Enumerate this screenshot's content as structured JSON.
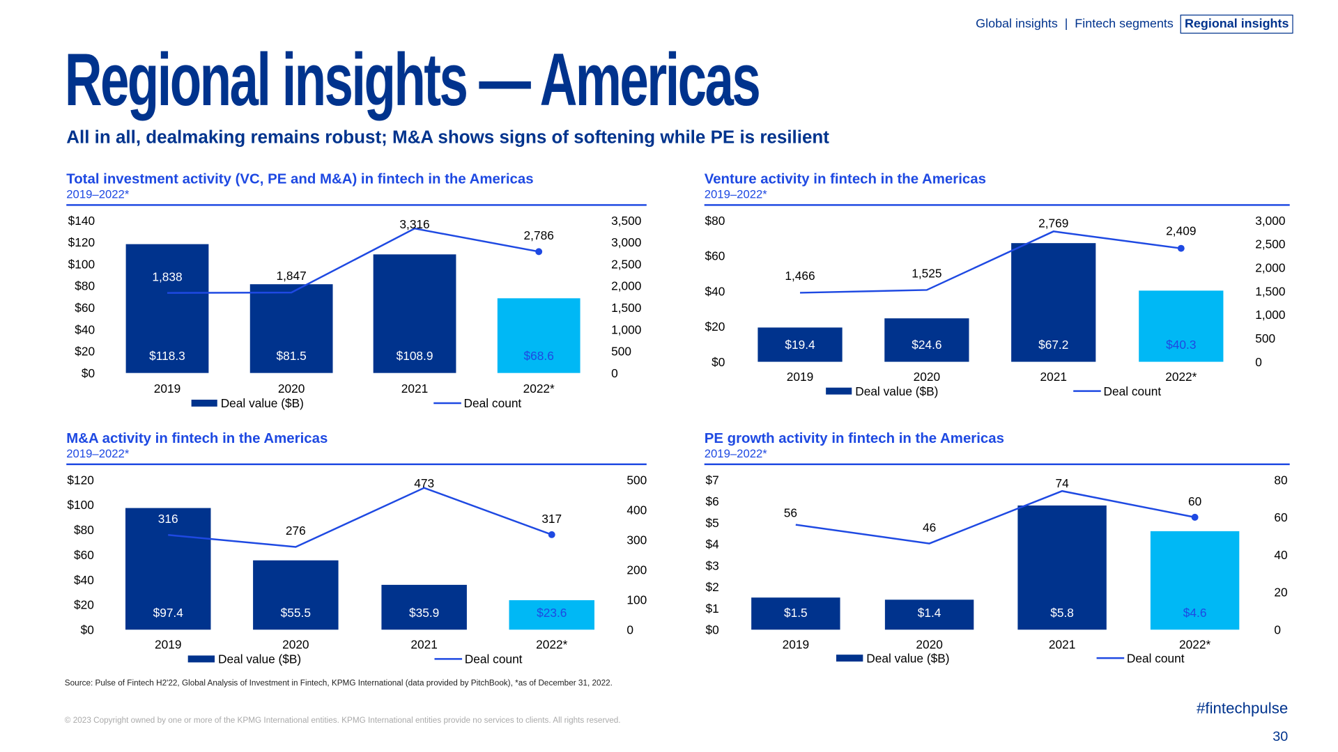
{
  "nav": {
    "items": [
      "Global insights",
      "Fintech segments",
      "Regional insights"
    ],
    "separator": "|",
    "active": "Regional insights"
  },
  "title": "Regional insights — Americas",
  "subtitle": "All in all, dealmaking remains robust; M&A shows signs of softening while PE is resilient",
  "colors": {
    "bar": "#00338D",
    "bar_highlight": "#00B8F5",
    "line": "#1E49E2",
    "title": "#1E49E2"
  },
  "chart_data": [
    {
      "type": "bar+line",
      "title": "Total investment activity (VC, PE and M&A) in fintech in the Americas",
      "subtitle": "2019–2022*",
      "categories": [
        "2019",
        "2020",
        "2021",
        "2022*"
      ],
      "series": [
        {
          "name": "Deal value ($B)",
          "type": "bar",
          "axis": "left",
          "values": [
            118.3,
            81.5,
            108.9,
            68.6
          ],
          "labels": [
            "$118.3",
            "$81.5",
            "$108.9",
            "$68.6"
          ]
        },
        {
          "name": "Deal count",
          "type": "line",
          "axis": "right",
          "values": [
            1838,
            1847,
            3316,
            2786
          ],
          "labels": [
            "1,838",
            "1,847",
            "3,316",
            "2,786"
          ]
        }
      ],
      "ylim": [
        0,
        140
      ],
      "y2lim": [
        0,
        3500
      ],
      "yticks": [
        "$0",
        "$20",
        "$40",
        "$60",
        "$80",
        "$100",
        "$120",
        "$140"
      ],
      "y2ticks": [
        "0",
        "500",
        "1,000",
        "1,500",
        "2,000",
        "2,500",
        "3,000",
        "3,500"
      ],
      "legend": "bottom",
      "grid": false
    },
    {
      "type": "bar+line",
      "title": "Venture activity in fintech in the Americas",
      "subtitle": "2019–2022*",
      "categories": [
        "2019",
        "2020",
        "2021",
        "2022*"
      ],
      "series": [
        {
          "name": "Deal value ($B)",
          "type": "bar",
          "axis": "left",
          "values": [
            19.4,
            24.6,
            67.2,
            40.3
          ],
          "labels": [
            "$19.4",
            "$24.6",
            "$67.2",
            "$40.3"
          ]
        },
        {
          "name": "Deal count",
          "type": "line",
          "axis": "right",
          "values": [
            1466,
            1525,
            2769,
            2409
          ],
          "labels": [
            "1,466",
            "1,525",
            "2,769",
            "2,409"
          ]
        }
      ],
      "ylim": [
        0,
        80
      ],
      "y2lim": [
        0,
        3000
      ],
      "yticks": [
        "$0",
        "$20",
        "$40",
        "$60",
        "$80"
      ],
      "y2ticks": [
        "0",
        "500",
        "1,000",
        "1,500",
        "2,000",
        "2,500",
        "3,000"
      ],
      "legend": "bottom",
      "grid": false
    },
    {
      "type": "bar+line",
      "title": "M&A activity in fintech in the Americas",
      "subtitle": "2019–2022*",
      "categories": [
        "2019",
        "2020",
        "2021",
        "2022*"
      ],
      "series": [
        {
          "name": "Deal value ($B)",
          "type": "bar",
          "axis": "left",
          "values": [
            97.4,
            55.5,
            35.9,
            23.6
          ],
          "labels": [
            "$97.4",
            "$55.5",
            "$35.9",
            "$23.6"
          ]
        },
        {
          "name": "Deal count",
          "type": "line",
          "axis": "right",
          "values": [
            316,
            276,
            473,
            317
          ],
          "labels": [
            "316",
            "276",
            "473",
            "317"
          ]
        }
      ],
      "ylim": [
        0,
        120
      ],
      "y2lim": [
        0,
        500
      ],
      "yticks": [
        "$0",
        "$20",
        "$40",
        "$60",
        "$80",
        "$100",
        "$120"
      ],
      "y2ticks": [
        "0",
        "100",
        "200",
        "300",
        "400",
        "500"
      ],
      "legend": "bottom",
      "grid": false
    },
    {
      "type": "bar+line",
      "title": "PE growth activity in fintech in the Americas",
      "subtitle": "2019–2022*",
      "categories": [
        "2019",
        "2020",
        "2021",
        "2022*"
      ],
      "series": [
        {
          "name": "Deal value ($B)",
          "type": "bar",
          "axis": "left",
          "values": [
            1.5,
            1.4,
            5.8,
            4.6
          ],
          "labels": [
            "$1.5",
            "$1.4",
            "$5.8",
            "$4.6"
          ]
        },
        {
          "name": "Deal count",
          "type": "line",
          "axis": "right",
          "values": [
            56,
            46,
            74,
            60
          ],
          "labels": [
            "56",
            "46",
            "74",
            "60"
          ]
        }
      ],
      "ylim": [
        0,
        7
      ],
      "y2lim": [
        0,
        80
      ],
      "yticks": [
        "$0",
        "$1",
        "$2",
        "$3",
        "$4",
        "$5",
        "$6",
        "$7"
      ],
      "y2ticks": [
        "0",
        "20",
        "40",
        "60",
        "80"
      ],
      "legend": "bottom",
      "grid": false
    }
  ],
  "footer": {
    "source": "Source: Pulse of Fintech H2'22, Global Analysis of Investment in Fintech, KPMG International (data provided by PitchBook), *as of December 31, 2022.",
    "copyright": "© 2023 Copyright owned by one or more of the KPMG International entities. KPMG International entities provide no services to clients. All rights reserved.",
    "hashtag": "#fintechpulse",
    "page_number": "30"
  }
}
